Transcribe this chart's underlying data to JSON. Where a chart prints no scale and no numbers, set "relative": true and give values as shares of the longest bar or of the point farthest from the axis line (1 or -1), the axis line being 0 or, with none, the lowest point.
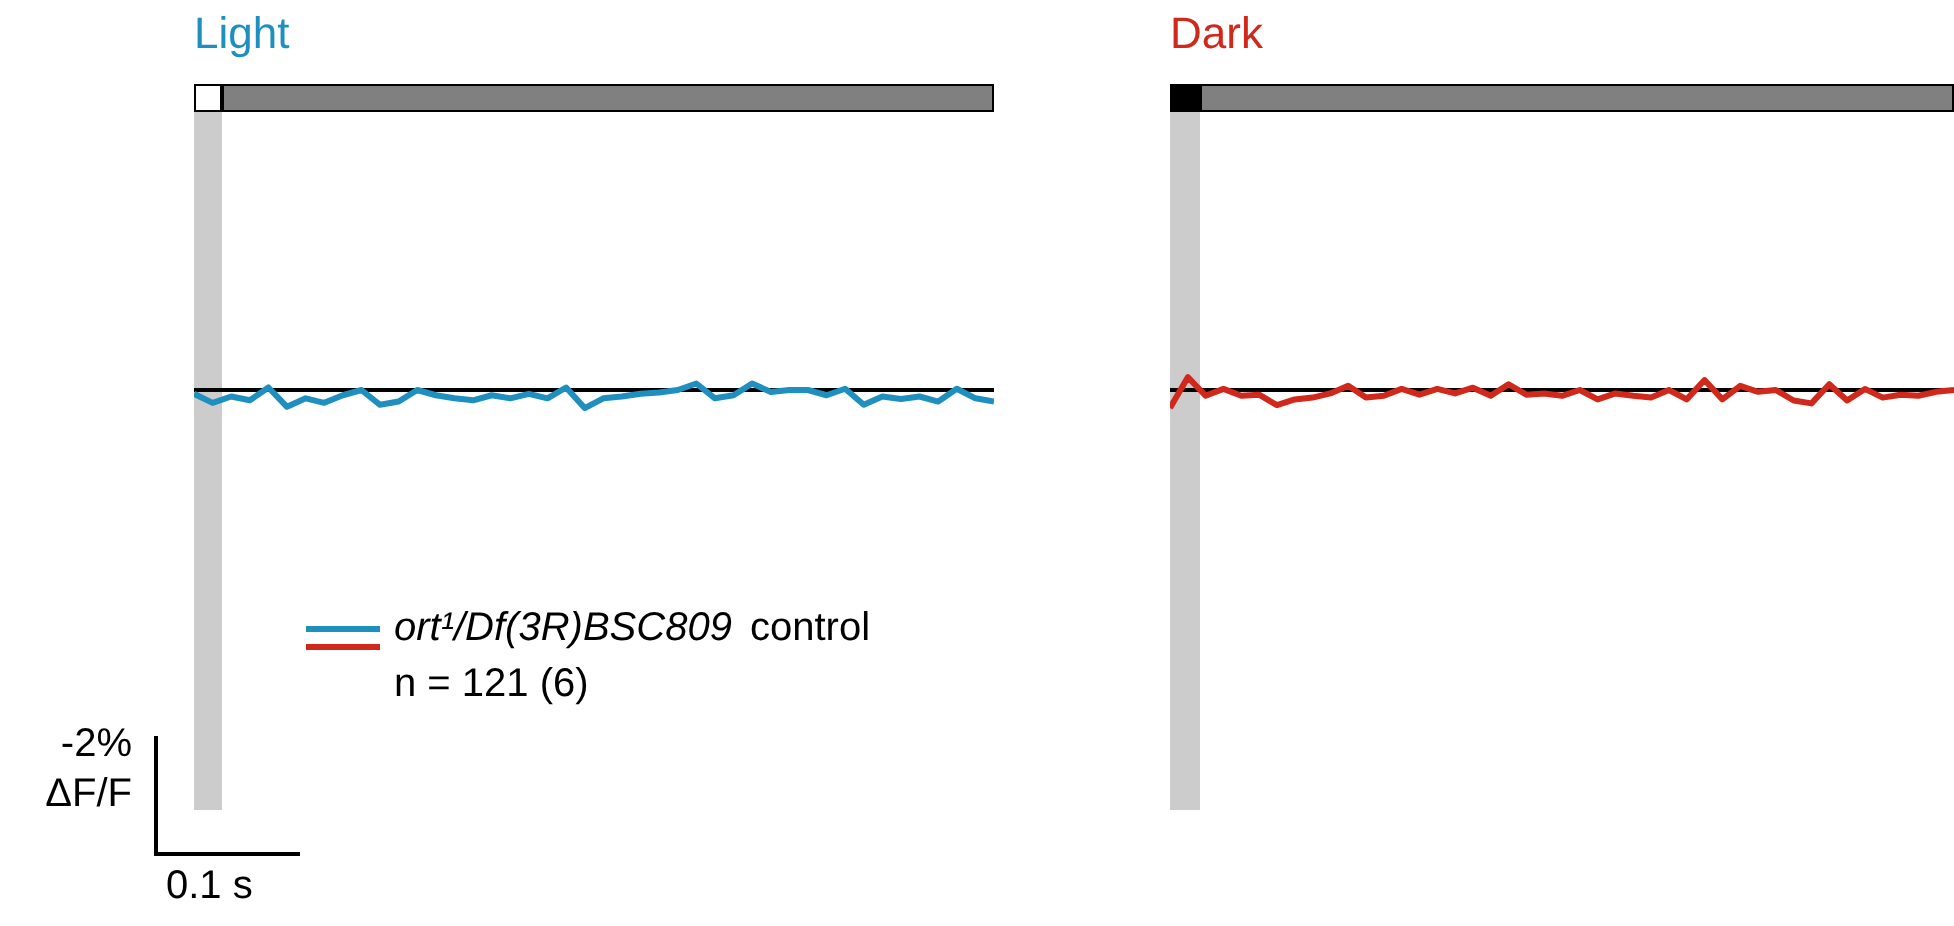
{
  "chart_data": [
    {
      "type": "line",
      "title": "Light",
      "relative": true,
      "legend": false,
      "tick_labels": false,
      "marker": "none",
      "line_style": "solid",
      "categories": [
        null,
        null,
        null,
        null,
        null,
        null,
        null,
        null,
        null,
        null,
        null,
        null,
        null,
        null,
        null,
        null,
        null,
        null,
        null,
        null,
        null,
        null,
        null,
        null,
        null,
        null,
        null,
        null,
        null,
        null,
        null,
        null,
        null,
        null,
        null,
        null,
        null,
        null,
        null,
        null,
        null,
        null,
        null,
        null
      ],
      "series": [
        {
          "color": "#1f8fc0",
          "values": [
            -0.21,
            -0.71,
            -0.36,
            -0.57,
            0.14,
            -0.93,
            -0.46,
            -0.71,
            -0.29,
            0,
            -0.82,
            -0.64,
            0,
            -0.29,
            -0.46,
            -0.57,
            -0.29,
            -0.46,
            -0.21,
            -0.46,
            0.14,
            -1,
            -0.46,
            -0.36,
            -0.21,
            -0.14,
            0,
            0.36,
            -0.46,
            -0.29,
            0.36,
            -0.11,
            0,
            0,
            -0.29,
            0.07,
            -0.82,
            -0.36,
            -0.5,
            -0.36,
            -0.64,
            0.07,
            -0.46,
            -0.64
          ]
        }
      ],
      "ref_lines": [
        {
          "axis": "y",
          "value": 0,
          "color": "#000000"
        }
      ],
      "annotations": [
        "ort¹/Df(3R)BSC809",
        "control",
        "n = 121 (6)",
        "-2%",
        "ΔF/F",
        "0.1 s"
      ]
    },
    {
      "type": "line",
      "title": "Dark",
      "relative": true,
      "legend": false,
      "tick_labels": false,
      "marker": "none",
      "line_style": "solid",
      "categories": [
        null,
        null,
        null,
        null,
        null,
        null,
        null,
        null,
        null,
        null,
        null,
        null,
        null,
        null,
        null,
        null,
        null,
        null,
        null,
        null,
        null,
        null,
        null,
        null,
        null,
        null,
        null,
        null,
        null,
        null,
        null,
        null,
        null,
        null,
        null,
        null,
        null,
        null,
        null,
        null,
        null,
        null,
        null,
        null,
        null
      ],
      "series": [
        {
          "color": "#d0281a",
          "values": [
            -1,
            0.71,
            -0.32,
            0.06,
            -0.32,
            -0.26,
            -0.84,
            -0.52,
            -0.42,
            -0.19,
            0.23,
            -0.42,
            -0.32,
            0.06,
            -0.26,
            0.06,
            -0.19,
            0.13,
            -0.32,
            0.32,
            -0.26,
            -0.19,
            -0.32,
            0,
            -0.52,
            -0.19,
            -0.32,
            -0.42,
            0,
            -0.52,
            0.55,
            -0.52,
            0.23,
            -0.1,
            0,
            -0.58,
            -0.74,
            0.32,
            -0.58,
            0.06,
            -0.42,
            -0.26,
            -0.32,
            -0.1,
            0
          ]
        }
      ],
      "ref_lines": [
        {
          "axis": "y",
          "value": 0,
          "color": "#000000"
        }
      ]
    }
  ]
}
